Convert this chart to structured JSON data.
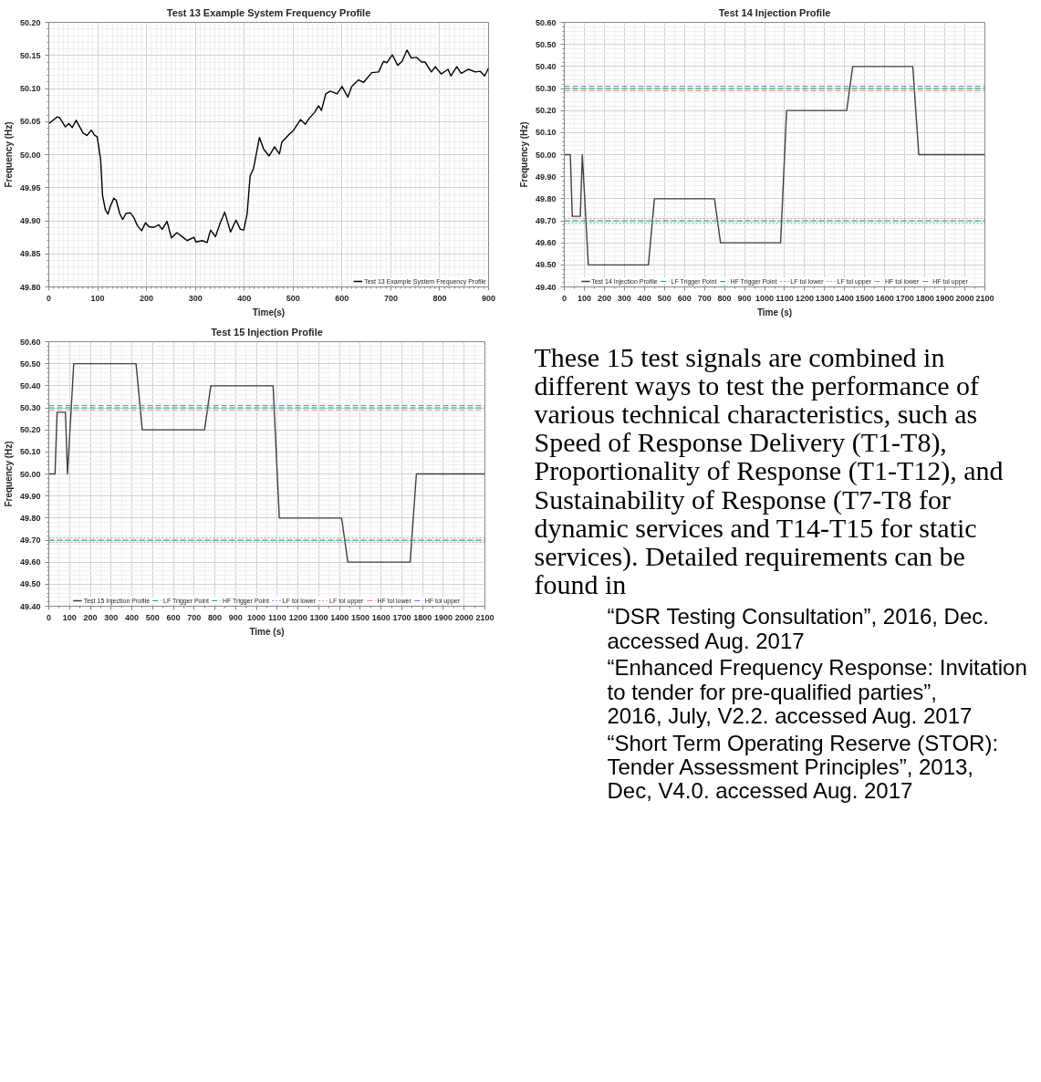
{
  "chart_data": [
    {
      "type": "line",
      "title": "Test 13 Example System Frequency Profile",
      "xlabel": "Time(s)",
      "ylabel": "Frequency (Hz)",
      "xlim": [
        0,
        900
      ],
      "ylim": [
        49.8,
        50.2
      ],
      "xticks": [
        0,
        100,
        200,
        300,
        400,
        500,
        600,
        700,
        800,
        900
      ],
      "yticks": [
        {
          "value": 49.8,
          "label": "49.80"
        },
        {
          "value": 49.85,
          "label": "49.85"
        },
        {
          "value": 49.9,
          "label": "49.90"
        },
        {
          "value": 49.95,
          "label": "49.95"
        },
        {
          "value": 50.0,
          "label": "50.00"
        },
        {
          "value": 50.05,
          "label": "50.05"
        },
        {
          "value": 50.1,
          "label": "50.10"
        },
        {
          "value": 50.15,
          "label": "50.15"
        },
        {
          "value": 50.2,
          "label": "50.20"
        }
      ],
      "grid": true,
      "legend": "bottom right",
      "x": [
        0,
        7,
        17,
        22,
        34,
        41,
        48,
        56,
        61,
        70,
        78,
        87,
        94,
        99,
        106,
        110,
        116,
        121,
        126,
        133,
        138,
        145,
        151,
        158,
        167,
        174,
        181,
        190,
        198,
        205,
        215,
        225,
        232,
        242,
        251,
        262,
        273,
        283,
        297,
        301,
        314,
        324,
        331,
        341,
        351,
        360,
        372,
        383,
        392,
        399,
        406,
        412,
        419,
        431,
        440,
        451,
        462,
        472,
        477,
        491,
        501,
        515,
        525,
        533,
        544,
        552,
        558,
        567,
        576,
        590,
        600,
        612,
        620,
        634,
        644,
        654,
        661,
        675,
        685,
        692,
        703,
        714,
        723,
        733,
        742,
        753,
        763,
        770,
        783,
        791,
        803,
        817,
        823,
        835,
        844,
        859,
        873,
        883,
        892,
        900
      ],
      "series": [
        {
          "name": "Test 13 Example System Frequency Profile",
          "color": "#000000",
          "line_style": "solid",
          "values": [
            50.047,
            50.051,
            50.057,
            50.056,
            50.042,
            50.047,
            50.041,
            50.052,
            50.045,
            50.033,
            50.029,
            50.037,
            50.029,
            50.027,
            49.993,
            49.938,
            49.916,
            49.91,
            49.922,
            49.934,
            49.931,
            49.911,
            49.902,
            49.911,
            49.912,
            49.905,
            49.893,
            49.885,
            49.897,
            49.891,
            49.89,
            49.894,
            49.887,
            49.899,
            49.874,
            49.882,
            49.876,
            49.87,
            49.875,
            49.868,
            49.87,
            49.867,
            49.886,
            49.876,
            49.897,
            49.913,
            49.883,
            49.901,
            49.887,
            49.886,
            49.911,
            49.968,
            49.979,
            50.026,
            50.008,
            49.998,
            50.012,
            50.001,
            50.019,
            50.03,
            50.037,
            50.053,
            50.046,
            50.055,
            50.064,
            50.074,
            50.067,
            50.092,
            50.096,
            50.092,
            50.103,
            50.087,
            50.103,
            50.113,
            50.109,
            50.118,
            50.124,
            50.125,
            50.141,
            50.139,
            50.151,
            50.135,
            50.141,
            50.158,
            50.146,
            50.147,
            50.14,
            50.14,
            50.125,
            50.133,
            50.122,
            50.129,
            50.119,
            50.133,
            50.123,
            50.129,
            50.125,
            50.126,
            50.119,
            50.131
          ]
        }
      ]
    },
    {
      "type": "line",
      "title": "Test 14 Injection Profile",
      "xlabel": "Time (s)",
      "ylabel": "Frequency (Hz)",
      "xlim": [
        0,
        2100
      ],
      "ylim": [
        49.4,
        50.6
      ],
      "xticks": [
        0,
        100,
        200,
        300,
        400,
        500,
        600,
        700,
        800,
        900,
        1000,
        1100,
        1200,
        1300,
        1400,
        1500,
        1600,
        1700,
        1800,
        1900,
        2000,
        2100
      ],
      "yticks": [
        {
          "value": 49.4,
          "label": "49.40"
        },
        {
          "value": 49.5,
          "label": "49.50"
        },
        {
          "value": 49.6,
          "label": "49.60"
        },
        {
          "value": 49.7,
          "label": "49.70"
        },
        {
          "value": 49.8,
          "label": "49.80"
        },
        {
          "value": 49.9,
          "label": "49.90"
        },
        {
          "value": 50.0,
          "label": "50.00"
        },
        {
          "value": 50.1,
          "label": "50.10"
        },
        {
          "value": 50.2,
          "label": "50.20"
        },
        {
          "value": 50.3,
          "label": "50.30"
        },
        {
          "value": 50.4,
          "label": "50.40"
        },
        {
          "value": 50.5,
          "label": "50.50"
        },
        {
          "value": 50.6,
          "label": "50.60"
        }
      ],
      "grid": true,
      "legend": "bottom",
      "series": [
        {
          "name": "Test 14 Injection Profile",
          "color": "#404040",
          "line_style": "solid",
          "x": [
            0,
            30,
            40,
            80,
            90,
            120,
            420,
            450,
            750,
            780,
            1080,
            1110,
            1410,
            1440,
            1740,
            1770,
            2100
          ],
          "values": [
            50.0,
            50.0,
            49.72,
            49.72,
            50.0,
            49.5,
            49.5,
            49.8,
            49.8,
            49.6,
            49.6,
            50.2,
            50.2,
            50.4,
            50.4,
            50.0,
            50.0
          ]
        },
        {
          "name": "LF Trigger Point",
          "color": "#00b050",
          "line_style": "dashed",
          "x": [
            0,
            2100
          ],
          "values": [
            49.7,
            49.7
          ]
        },
        {
          "name": "HF Trigger Point",
          "color": "#00b050",
          "line_style": "dashed",
          "x": [
            0,
            2100
          ],
          "values": [
            50.3,
            50.3
          ]
        },
        {
          "name": "LF tol lower",
          "color": "#7f8fff",
          "line_style": "dotted",
          "x": [
            0,
            2100
          ],
          "values": [
            49.69,
            49.69
          ]
        },
        {
          "name": "LF tol upper",
          "color": "#ff7f7f",
          "line_style": "dotted",
          "x": [
            0,
            2100
          ],
          "values": [
            49.71,
            49.71
          ]
        },
        {
          "name": "HF tol lower",
          "color": "#ff7f7f",
          "line_style": "dashed",
          "x": [
            0,
            2100
          ],
          "values": [
            50.29,
            50.29
          ]
        },
        {
          "name": "HF tol upper",
          "color": "#6f6fff",
          "line_style": "dashed",
          "x": [
            0,
            2100
          ],
          "values": [
            50.31,
            50.31
          ]
        }
      ]
    },
    {
      "type": "line",
      "title": "Test 15 Injection Profile",
      "xlabel": "Time (s)",
      "ylabel": "Frequency (Hz)",
      "xlim": [
        0,
        2100
      ],
      "ylim": [
        49.4,
        50.6
      ],
      "xticks": [
        0,
        100,
        200,
        300,
        400,
        500,
        600,
        700,
        800,
        900,
        1000,
        1100,
        1200,
        1300,
        1400,
        1500,
        1600,
        1700,
        1800,
        1900,
        2000,
        2100
      ],
      "yticks": [
        {
          "value": 49.4,
          "label": "49.40"
        },
        {
          "value": 49.5,
          "label": "49.50"
        },
        {
          "value": 49.6,
          "label": "49.60"
        },
        {
          "value": 49.7,
          "label": "49.70"
        },
        {
          "value": 49.8,
          "label": "49.80"
        },
        {
          "value": 49.9,
          "label": "49.90"
        },
        {
          "value": 50.0,
          "label": "50.00"
        },
        {
          "value": 50.1,
          "label": "50.10"
        },
        {
          "value": 50.2,
          "label": "50.20"
        },
        {
          "value": 50.3,
          "label": "50.30"
        },
        {
          "value": 50.4,
          "label": "50.40"
        },
        {
          "value": 50.5,
          "label": "50.50"
        },
        {
          "value": 50.6,
          "label": "50.60"
        }
      ],
      "grid": true,
      "legend": "bottom",
      "series": [
        {
          "name": "Test 15 Injection Profile",
          "color": "#404040",
          "line_style": "solid",
          "x": [
            0,
            30,
            40,
            80,
            90,
            120,
            420,
            450,
            750,
            780,
            1080,
            1110,
            1410,
            1440,
            1740,
            1770,
            2100
          ],
          "values": [
            50.0,
            50.0,
            50.28,
            50.28,
            50.0,
            50.5,
            50.5,
            50.2,
            50.2,
            50.4,
            50.4,
            49.8,
            49.8,
            49.6,
            49.6,
            50.0,
            50.0
          ]
        },
        {
          "name": "LF Trigger Point",
          "color": "#00b050",
          "line_style": "dashed",
          "x": [
            0,
            2100
          ],
          "values": [
            49.7,
            49.7
          ]
        },
        {
          "name": "HF Trigger Point",
          "color": "#00b050",
          "line_style": "dashed",
          "x": [
            0,
            2100
          ],
          "values": [
            50.3,
            50.3
          ]
        },
        {
          "name": "LF tol lower",
          "color": "#7f8fff",
          "line_style": "dotted",
          "x": [
            0,
            2100
          ],
          "values": [
            49.69,
            49.69
          ]
        },
        {
          "name": "LF tol upper",
          "color": "#ff7f7f",
          "line_style": "dotted",
          "x": [
            0,
            2100
          ],
          "values": [
            49.71,
            49.71
          ]
        },
        {
          "name": "HF tol lower",
          "color": "#ff7f7f",
          "line_style": "dashed",
          "x": [
            0,
            2100
          ],
          "values": [
            50.29,
            50.29
          ]
        },
        {
          "name": "HF tol upper",
          "color": "#6f6fff",
          "line_style": "dashed",
          "x": [
            0,
            2100
          ],
          "values": [
            50.31,
            50.31
          ]
        }
      ]
    },
    {
      "type": "other",
      "annotations": [
        "These 15 test signals are combined in different ways to test the performance of various technical characteristics, such as Speed of Response Delivery (T1-T8), Proportionality of Response (T1-T12), and Sustainability of Response (T7-T8 for dynamic services and T14-T15 for static services). Detailed requirements can be found in",
        "“DSR Testing Consultation”, 2016, Dec. accessed Aug. 2017",
        "“Enhanced Frequency Response: Invitation to tender for pre-qualified parties”, 2016, July, V2.2. accessed Aug. 2017",
        "“Short Term Operating Reserve (STOR): Tender Assessment Principles”, 2013, Dec, V4.0. accessed Aug. 2017"
      ]
    }
  ]
}
